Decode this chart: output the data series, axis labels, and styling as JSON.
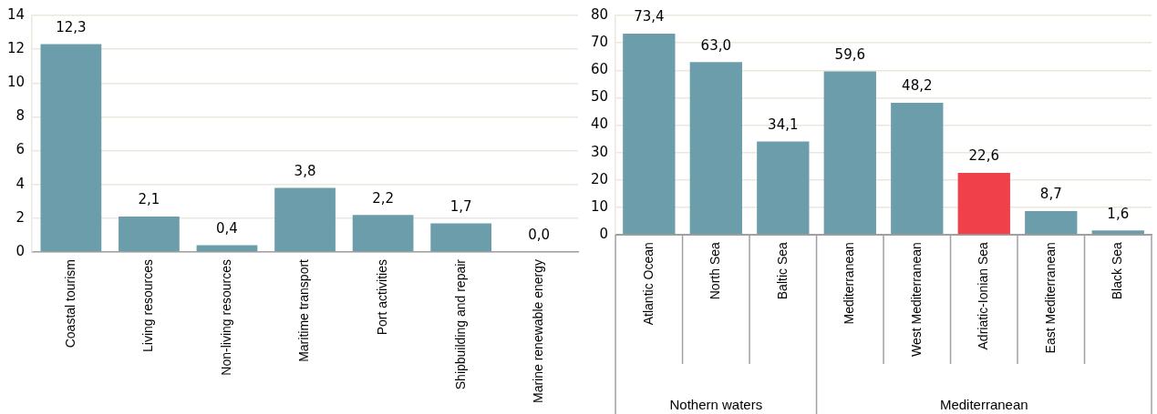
{
  "chart_data": [
    {
      "type": "bar",
      "categories": [
        "Coastal tourism",
        "Living resources",
        "Non-living resources",
        "Maritime transport",
        "Port activities",
        "Shipbuilding and repair",
        "Marine renewable energy"
      ],
      "values": [
        12.3,
        2.1,
        0.4,
        3.8,
        2.2,
        1.7,
        0.0
      ],
      "value_labels": [
        "12,3",
        "2,1",
        "0,4",
        "3,8",
        "2,2",
        "1,7",
        "0,0"
      ],
      "color": "#6b9dab",
      "ylim": [
        0,
        14
      ],
      "yticks": [
        0,
        2,
        4,
        6,
        8,
        10,
        12,
        14
      ],
      "grid": "y",
      "legend": false
    },
    {
      "type": "bar",
      "categories": [
        "Atlantic Ocean",
        "North Sea",
        "Baltic Sea",
        "Mediterranean",
        "West Mediterranean",
        "Adriatic-Ionian Sea",
        "East Mediterranean",
        "Black Sea"
      ],
      "values": [
        73.4,
        63.0,
        34.1,
        59.6,
        48.2,
        22.6,
        8.7,
        1.6
      ],
      "value_labels": [
        "73,4",
        "63,0",
        "34,1",
        "59,6",
        "48,2",
        "22,6",
        "8,7",
        "1,6"
      ],
      "colors": [
        "#6b9dab",
        "#6b9dab",
        "#6b9dab",
        "#6b9dab",
        "#6b9dab",
        "#f0404a",
        "#6b9dab",
        "#6b9dab"
      ],
      "ylim": [
        0,
        80
      ],
      "yticks": [
        0,
        10,
        20,
        30,
        40,
        50,
        60,
        70,
        80
      ],
      "grid": "y",
      "legend": false,
      "annotations": [
        "Nothern waters",
        "Mediterranean"
      ]
    }
  ]
}
